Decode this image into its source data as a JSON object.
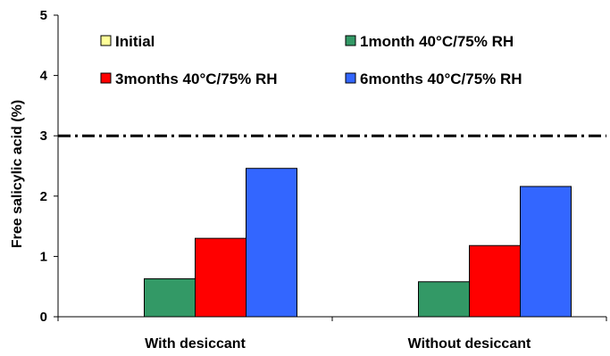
{
  "chart_data": {
    "type": "bar",
    "title": "",
    "xlabel": "",
    "ylabel": "Free salicylic acid (%)",
    "ylim": [
      0,
      5
    ],
    "yticks": [
      "0",
      "1",
      "2",
      "3",
      "4",
      "5"
    ],
    "grid": false,
    "legend_position": "top-inside",
    "categories": [
      "With desiccant",
      "Without desiccant"
    ],
    "series": [
      {
        "name": "Initial",
        "color": "#ffff99",
        "values": [
          0,
          0
        ]
      },
      {
        "name": "1month 40°C/75% RH",
        "color": "#339966",
        "values": [
          0.63,
          0.58
        ]
      },
      {
        "name": "3months 40°C/75% RH",
        "color": "#ff0000",
        "values": [
          1.3,
          1.18
        ]
      },
      {
        "name": "6months 40°C/75% RH",
        "color": "#3366ff",
        "values": [
          2.46,
          2.16
        ]
      }
    ],
    "reference_line": {
      "value": 3,
      "style": "dash-dot"
    }
  }
}
